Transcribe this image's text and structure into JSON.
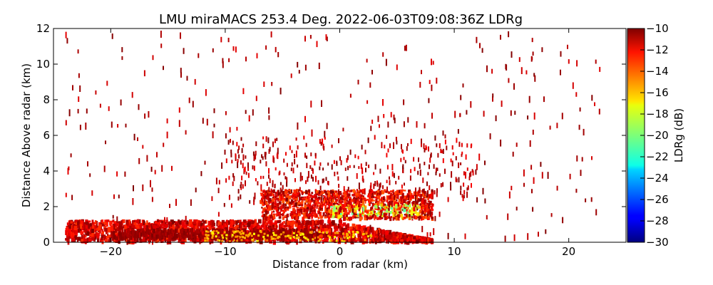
{
  "chart_data": {
    "type": "heatmap",
    "title": "LMU miraMACS 253.4 Deg. 2022-06-03T09:08:36Z  LDRg",
    "xlabel": "Distance from radar (km)",
    "ylabel": "Distance Above radar  (km)",
    "xlim": [
      -25,
      25
    ],
    "ylim": [
      0,
      12
    ],
    "x_ticks": [
      -20,
      -10,
      0,
      10,
      20
    ],
    "x_tick_labels": [
      "−20",
      "−10",
      "0",
      "10",
      "20"
    ],
    "y_ticks": [
      0,
      2,
      4,
      6,
      8,
      10,
      12
    ],
    "y_tick_labels": [
      "0",
      "2",
      "4",
      "6",
      "8",
      "10",
      "12"
    ],
    "colorbar": {
      "label": "LDRg (dB)",
      "range": [
        -30,
        -10
      ],
      "ticks": [
        -10,
        -12,
        -14,
        -16,
        -18,
        -20,
        -22,
        -24,
        -26,
        -28,
        -30
      ],
      "tick_labels": [
        "−10",
        "−12",
        "−14",
        "−16",
        "−18",
        "−20",
        "−22",
        "−24",
        "−26",
        "−28",
        "−30"
      ],
      "colormap": "jet"
    },
    "regions": [
      {
        "name": "near-surface band",
        "x_range": [
          -24,
          8
        ],
        "height_km": [
          0.2,
          1.4
        ],
        "ldr_db": [
          -14,
          -10
        ]
      },
      {
        "name": "melting-layer cluster",
        "x_range": [
          -7,
          8
        ],
        "height_km": [
          1.4,
          3.0
        ],
        "ldr_db": [
          -22,
          -11
        ]
      },
      {
        "name": "sparse speckle",
        "x_range": [
          -24,
          22
        ],
        "height_km": [
          0,
          12
        ],
        "ldr_db": [
          -11,
          -10
        ]
      }
    ]
  }
}
